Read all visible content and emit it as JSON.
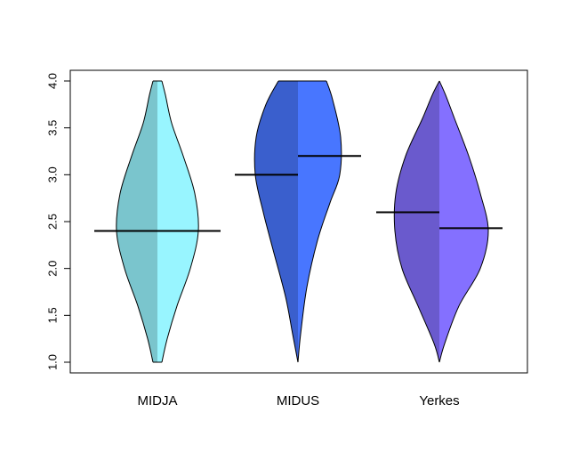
{
  "chart_data": {
    "type": "violin",
    "title": "",
    "xlabel": "",
    "ylabel": "",
    "ylim": [
      1.0,
      4.0
    ],
    "yticks": [
      1.0,
      1.5,
      2.0,
      2.5,
      3.0,
      3.5,
      4.0
    ],
    "ytick_labels": [
      "1.0",
      "1.5",
      "2.0",
      "2.5",
      "3.0",
      "3.5",
      "4.0"
    ],
    "categories": [
      "MIDJA",
      "MIDUS",
      "Yerkes"
    ],
    "violins": [
      {
        "name": "MIDJA",
        "color_left": "#7AC5CD",
        "color_right": "#98F5FF",
        "median_left": 2.4,
        "median_right": 2.4,
        "left_profile": [
          [
            1.0,
            0.05
          ],
          [
            1.25,
            0.11
          ],
          [
            1.6,
            0.22
          ],
          [
            2.0,
            0.37
          ],
          [
            2.4,
            0.46
          ],
          [
            2.8,
            0.42
          ],
          [
            3.2,
            0.29
          ],
          [
            3.55,
            0.16
          ],
          [
            3.85,
            0.09
          ],
          [
            4.0,
            0.05
          ]
        ],
        "right_profile": [
          [
            1.0,
            0.05
          ],
          [
            1.25,
            0.11
          ],
          [
            1.6,
            0.22
          ],
          [
            2.0,
            0.37
          ],
          [
            2.4,
            0.46
          ],
          [
            2.8,
            0.42
          ],
          [
            3.2,
            0.29
          ],
          [
            3.55,
            0.16
          ],
          [
            3.85,
            0.09
          ],
          [
            4.0,
            0.05
          ]
        ]
      },
      {
        "name": "MIDUS",
        "color_left": "#3A5FCD",
        "color_right": "#4876FF",
        "median_left": 3.0,
        "median_right": 3.2,
        "left_profile": [
          [
            1.0,
            0.0
          ],
          [
            1.3,
            0.06
          ],
          [
            1.7,
            0.14
          ],
          [
            2.2,
            0.28
          ],
          [
            2.6,
            0.39
          ],
          [
            3.0,
            0.48
          ],
          [
            3.4,
            0.47
          ],
          [
            3.75,
            0.36
          ],
          [
            4.0,
            0.22
          ]
        ],
        "right_profile": [
          [
            1.0,
            0.0
          ],
          [
            1.3,
            0.03
          ],
          [
            1.8,
            0.1
          ],
          [
            2.3,
            0.22
          ],
          [
            2.7,
            0.36
          ],
          [
            3.0,
            0.47
          ],
          [
            3.4,
            0.48
          ],
          [
            3.8,
            0.39
          ],
          [
            4.0,
            0.32
          ]
        ]
      },
      {
        "name": "Yerkes",
        "color_left": "#6A5ACD",
        "color_right": "#8470FF",
        "median_left": 2.6,
        "median_right": 2.43,
        "left_profile": [
          [
            1.0,
            0.0
          ],
          [
            1.2,
            0.06
          ],
          [
            1.6,
            0.24
          ],
          [
            2.0,
            0.42
          ],
          [
            2.4,
            0.5
          ],
          [
            2.8,
            0.49
          ],
          [
            3.2,
            0.38
          ],
          [
            3.6,
            0.19
          ],
          [
            3.85,
            0.08
          ],
          [
            4.0,
            0.0
          ]
        ],
        "right_profile": [
          [
            1.0,
            0.0
          ],
          [
            1.2,
            0.06
          ],
          [
            1.6,
            0.22
          ],
          [
            2.0,
            0.46
          ],
          [
            2.4,
            0.55
          ],
          [
            2.8,
            0.46
          ],
          [
            3.2,
            0.33
          ],
          [
            3.6,
            0.17
          ],
          [
            3.85,
            0.07
          ],
          [
            4.0,
            0.0
          ]
        ]
      }
    ],
    "median_color": "#000000",
    "outline_color": "#000000",
    "grid": false,
    "legend": "none"
  }
}
